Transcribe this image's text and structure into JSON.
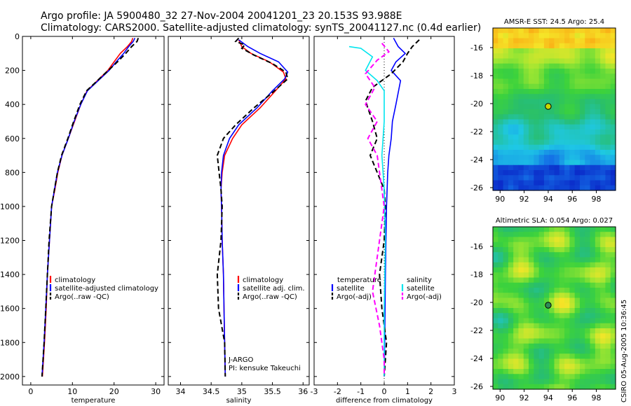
{
  "title_line1": "Argo profile: JA 5900480_32 27-Nov-2004 20041201_23 20.153S 93.988E",
  "title_line2": "Climatology: CARS2000. Satellite-adjusted climatology: synTS_20041127.nc (0.4d earlier)",
  "side_stamp": "CSIRO 05-Aug-2005 10:36:45",
  "colors": {
    "climatology": "#ff0000",
    "satellite": "#0000ff",
    "argo": "#000000",
    "sal_sat": "#00e5ee",
    "sal_argo": "#ff00ff"
  },
  "chart_data": [
    {
      "type": "line",
      "xlabel": "temperature",
      "xlim": [
        -2,
        32
      ],
      "ylim": [
        0,
        2050
      ],
      "xticks": [
        "0",
        "10",
        "20",
        "30"
      ],
      "yticks": [
        "0",
        "200",
        "400",
        "600",
        "800",
        "1000",
        "1200",
        "1400",
        "1600",
        "1800",
        "2000"
      ],
      "legend": [
        "climatology",
        "satellite-adjusted climatology",
        "Argo(..raw -QC)"
      ],
      "series": [
        {
          "name": "climatology",
          "color": "#ff0000",
          "dash": "solid",
          "points": [
            [
              24.5,
              10
            ],
            [
              24.2,
              30
            ],
            [
              23.2,
              60
            ],
            [
              21.5,
              100
            ],
            [
              20,
              150
            ],
            [
              18.5,
              200
            ],
            [
              16,
              260
            ],
            [
              13.5,
              320
            ],
            [
              12,
              400
            ],
            [
              10.5,
              500
            ],
            [
              9,
              600
            ],
            [
              7.5,
              700
            ],
            [
              6.5,
              800
            ],
            [
              5.8,
              900
            ],
            [
              5,
              1000
            ],
            [
              4.5,
              1200
            ],
            [
              4,
              1400
            ],
            [
              3.7,
              1600
            ],
            [
              3.3,
              1800
            ],
            [
              2.8,
              2000
            ]
          ]
        },
        {
          "name": "satellite-adjusted climatology",
          "color": "#0000ff",
          "dash": "solid",
          "points": [
            [
              25,
              10
            ],
            [
              24.6,
              30
            ],
            [
              23.5,
              60
            ],
            [
              22.3,
              100
            ],
            [
              20.5,
              150
            ],
            [
              18.8,
              200
            ],
            [
              16.2,
              260
            ],
            [
              13.6,
              320
            ],
            [
              12,
              400
            ],
            [
              10.4,
              500
            ],
            [
              9,
              600
            ],
            [
              7.5,
              700
            ],
            [
              6.4,
              800
            ],
            [
              5.7,
              900
            ],
            [
              5,
              1000
            ],
            [
              4.5,
              1200
            ],
            [
              4,
              1400
            ],
            [
              3.6,
              1600
            ],
            [
              3.2,
              1800
            ],
            [
              2.7,
              2000
            ]
          ]
        },
        {
          "name": "Argo(..raw -QC)",
          "color": "#000000",
          "dash": "dash",
          "points": [
            [
              25.8,
              10
            ],
            [
              25.5,
              30
            ],
            [
              24.2,
              60
            ],
            [
              22.8,
              100
            ],
            [
              20.8,
              150
            ],
            [
              18.6,
              200
            ],
            [
              16,
              260
            ],
            [
              13.4,
              320
            ],
            [
              11.8,
              400
            ],
            [
              10.3,
              500
            ],
            [
              8.9,
              600
            ],
            [
              7.4,
              700
            ],
            [
              6.4,
              800
            ],
            [
              5.7,
              900
            ],
            [
              5,
              1000
            ],
            [
              4.4,
              1200
            ],
            [
              4,
              1400
            ],
            [
              3.6,
              1600
            ],
            [
              3.2,
              1800
            ],
            [
              2.7,
              2000
            ]
          ]
        }
      ]
    },
    {
      "type": "line",
      "xlabel": "salinity",
      "xlim": [
        33.8,
        36.1
      ],
      "ylim": [
        0,
        2050
      ],
      "xticks": [
        "34",
        "34.5",
        "35",
        "35.5",
        "36"
      ],
      "legend": [
        "climatology",
        "satellite adj. clim.",
        "Argo(..raw -QC)"
      ],
      "annotation": [
        "J-ARGO",
        "PI: kensuke Takeuchi"
      ],
      "series": [
        {
          "name": "climatology",
          "color": "#ff0000",
          "dash": "solid",
          "points": [
            [
              34.95,
              20
            ],
            [
              35.0,
              60
            ],
            [
              35.15,
              100
            ],
            [
              35.45,
              150
            ],
            [
              35.68,
              210
            ],
            [
              35.72,
              250
            ],
            [
              35.55,
              320
            ],
            [
              35.3,
              420
            ],
            [
              35.0,
              520
            ],
            [
              34.85,
              600
            ],
            [
              34.72,
              700
            ],
            [
              34.68,
              800
            ],
            [
              34.66,
              900
            ],
            [
              34.67,
              1000
            ],
            [
              34.68,
              1200
            ],
            [
              34.7,
              1400
            ],
            [
              34.71,
              1600
            ],
            [
              34.72,
              1800
            ],
            [
              34.73,
              2000
            ]
          ]
        },
        {
          "name": "satellite adj. clim.",
          "color": "#0000ff",
          "dash": "solid",
          "points": [
            [
              34.95,
              20
            ],
            [
              35.1,
              60
            ],
            [
              35.3,
              100
            ],
            [
              35.6,
              150
            ],
            [
              35.75,
              210
            ],
            [
              35.7,
              250
            ],
            [
              35.5,
              320
            ],
            [
              35.25,
              420
            ],
            [
              34.95,
              520
            ],
            [
              34.8,
              600
            ],
            [
              34.7,
              700
            ],
            [
              34.67,
              800
            ],
            [
              34.66,
              900
            ],
            [
              34.67,
              1000
            ],
            [
              34.68,
              1200
            ],
            [
              34.7,
              1400
            ],
            [
              34.71,
              1600
            ],
            [
              34.72,
              1800
            ],
            [
              34.73,
              2000
            ]
          ]
        },
        {
          "name": "Argo(..raw -QC)",
          "color": "#000000",
          "dash": "dash",
          "points": [
            [
              34.95,
              10
            ],
            [
              34.9,
              30
            ],
            [
              35.05,
              50
            ],
            [
              35.0,
              70
            ],
            [
              35.2,
              110
            ],
            [
              35.5,
              160
            ],
            [
              35.72,
              210
            ],
            [
              35.75,
              250
            ],
            [
              35.5,
              330
            ],
            [
              35.2,
              420
            ],
            [
              34.9,
              520
            ],
            [
              34.7,
              600
            ],
            [
              34.6,
              700
            ],
            [
              34.63,
              800
            ],
            [
              34.66,
              900
            ],
            [
              34.68,
              1000
            ],
            [
              34.66,
              1200
            ],
            [
              34.6,
              1400
            ],
            [
              34.62,
              1600
            ],
            [
              34.72,
              1800
            ],
            [
              34.73,
              2000
            ]
          ]
        }
      ]
    },
    {
      "type": "line",
      "xlabel": "difference from climatology",
      "xlim": [
        -3,
        3
      ],
      "ylim": [
        0,
        2050
      ],
      "xticks": [
        "-3",
        "-2",
        "-1",
        "0",
        "1",
        "2",
        "3"
      ],
      "legend_temperature": {
        "title": "temperature",
        "items": [
          "satellite",
          "Argo(-adj)"
        ]
      },
      "legend_salinity": {
        "title": "salinity",
        "items": [
          "satellite",
          "Argo(-adj)"
        ]
      },
      "series": [
        {
          "name": "temperature satellite",
          "color": "#0000ff",
          "dash": "solid",
          "points": [
            [
              0.4,
              10
            ],
            [
              0.6,
              60
            ],
            [
              0.9,
              100
            ],
            [
              0.5,
              150
            ],
            [
              0.3,
              200
            ],
            [
              0.7,
              260
            ],
            [
              0.5,
              400
            ],
            [
              0.35,
              500
            ],
            [
              0.3,
              600
            ],
            [
              0.2,
              700
            ],
            [
              0.15,
              800
            ],
            [
              0.1,
              1000
            ],
            [
              0.05,
              1400
            ],
            [
              0.02,
              1800
            ],
            [
              0,
              2000
            ]
          ]
        },
        {
          "name": "temperature Argo(-adj)",
          "color": "#000000",
          "dash": "dash",
          "points": [
            [
              1.5,
              20
            ],
            [
              1.2,
              60
            ],
            [
              1.0,
              100
            ],
            [
              0.8,
              150
            ],
            [
              0.3,
              220
            ],
            [
              -0.5,
              300
            ],
            [
              -0.8,
              380
            ],
            [
              -0.5,
              500
            ],
            [
              -0.3,
              600
            ],
            [
              -0.6,
              700
            ],
            [
              -0.3,
              800
            ],
            [
              0,
              900
            ],
            [
              0.05,
              1000
            ],
            [
              0,
              1200
            ],
            [
              -0.2,
              1400
            ],
            [
              -0.1,
              1600
            ],
            [
              0.1,
              1800
            ],
            [
              0,
              2000
            ]
          ]
        },
        {
          "name": "salinity satellite",
          "color": "#00e5ee",
          "dash": "solid",
          "points": [
            [
              -1.5,
              60
            ],
            [
              -1.0,
              70
            ],
            [
              -0.5,
              120
            ],
            [
              -0.8,
              200
            ],
            [
              -0.3,
              260
            ],
            [
              0,
              320
            ],
            [
              0,
              500
            ],
            [
              -0.1,
              700
            ],
            [
              0,
              900
            ],
            [
              0.05,
              1200
            ],
            [
              0,
              1600
            ],
            [
              0,
              2000
            ]
          ]
        },
        {
          "name": "salinity Argo(-adj)",
          "color": "#ff00ff",
          "dash": "dash",
          "points": [
            [
              -0.1,
              40
            ],
            [
              0.2,
              90
            ],
            [
              -0.3,
              140
            ],
            [
              -0.8,
              220
            ],
            [
              -0.4,
              300
            ],
            [
              -0.8,
              400
            ],
            [
              -0.3,
              500
            ],
            [
              -0.7,
              600
            ],
            [
              -0.3,
              700
            ],
            [
              -0.2,
              800
            ],
            [
              0,
              1000
            ],
            [
              -0.2,
              1200
            ],
            [
              -0.5,
              1500
            ],
            [
              -0.2,
              1700
            ],
            [
              0,
              1900
            ],
            [
              0,
              2000
            ]
          ]
        }
      ]
    },
    {
      "type": "heatmap",
      "title": "AMSR-E SST: 24.5 Argo: 25.4",
      "xlim": [
        89.4,
        99.6
      ],
      "ylim": [
        -26.2,
        -14.6
      ],
      "xticks": [
        "90",
        "92",
        "94",
        "96",
        "98"
      ],
      "yticks": [
        "-16",
        "-18",
        "-20",
        "-22",
        "-24",
        "-26"
      ],
      "marker": {
        "lon": 94.0,
        "lat": -20.2
      },
      "palette": "warm-top-to-blue-bottom"
    },
    {
      "type": "heatmap",
      "title": "Altimetric SLA: 0.054 Argo: 0.027",
      "xlim": [
        89.4,
        99.6
      ],
      "ylim": [
        -26.2,
        -14.6
      ],
      "xticks": [
        "90",
        "92",
        "94",
        "96",
        "98"
      ],
      "yticks": [
        "-16",
        "-18",
        "-20",
        "-22",
        "-24",
        "-26"
      ],
      "marker": {
        "lon": 94.0,
        "lat": -20.2
      },
      "palette": "green-mottled"
    }
  ]
}
